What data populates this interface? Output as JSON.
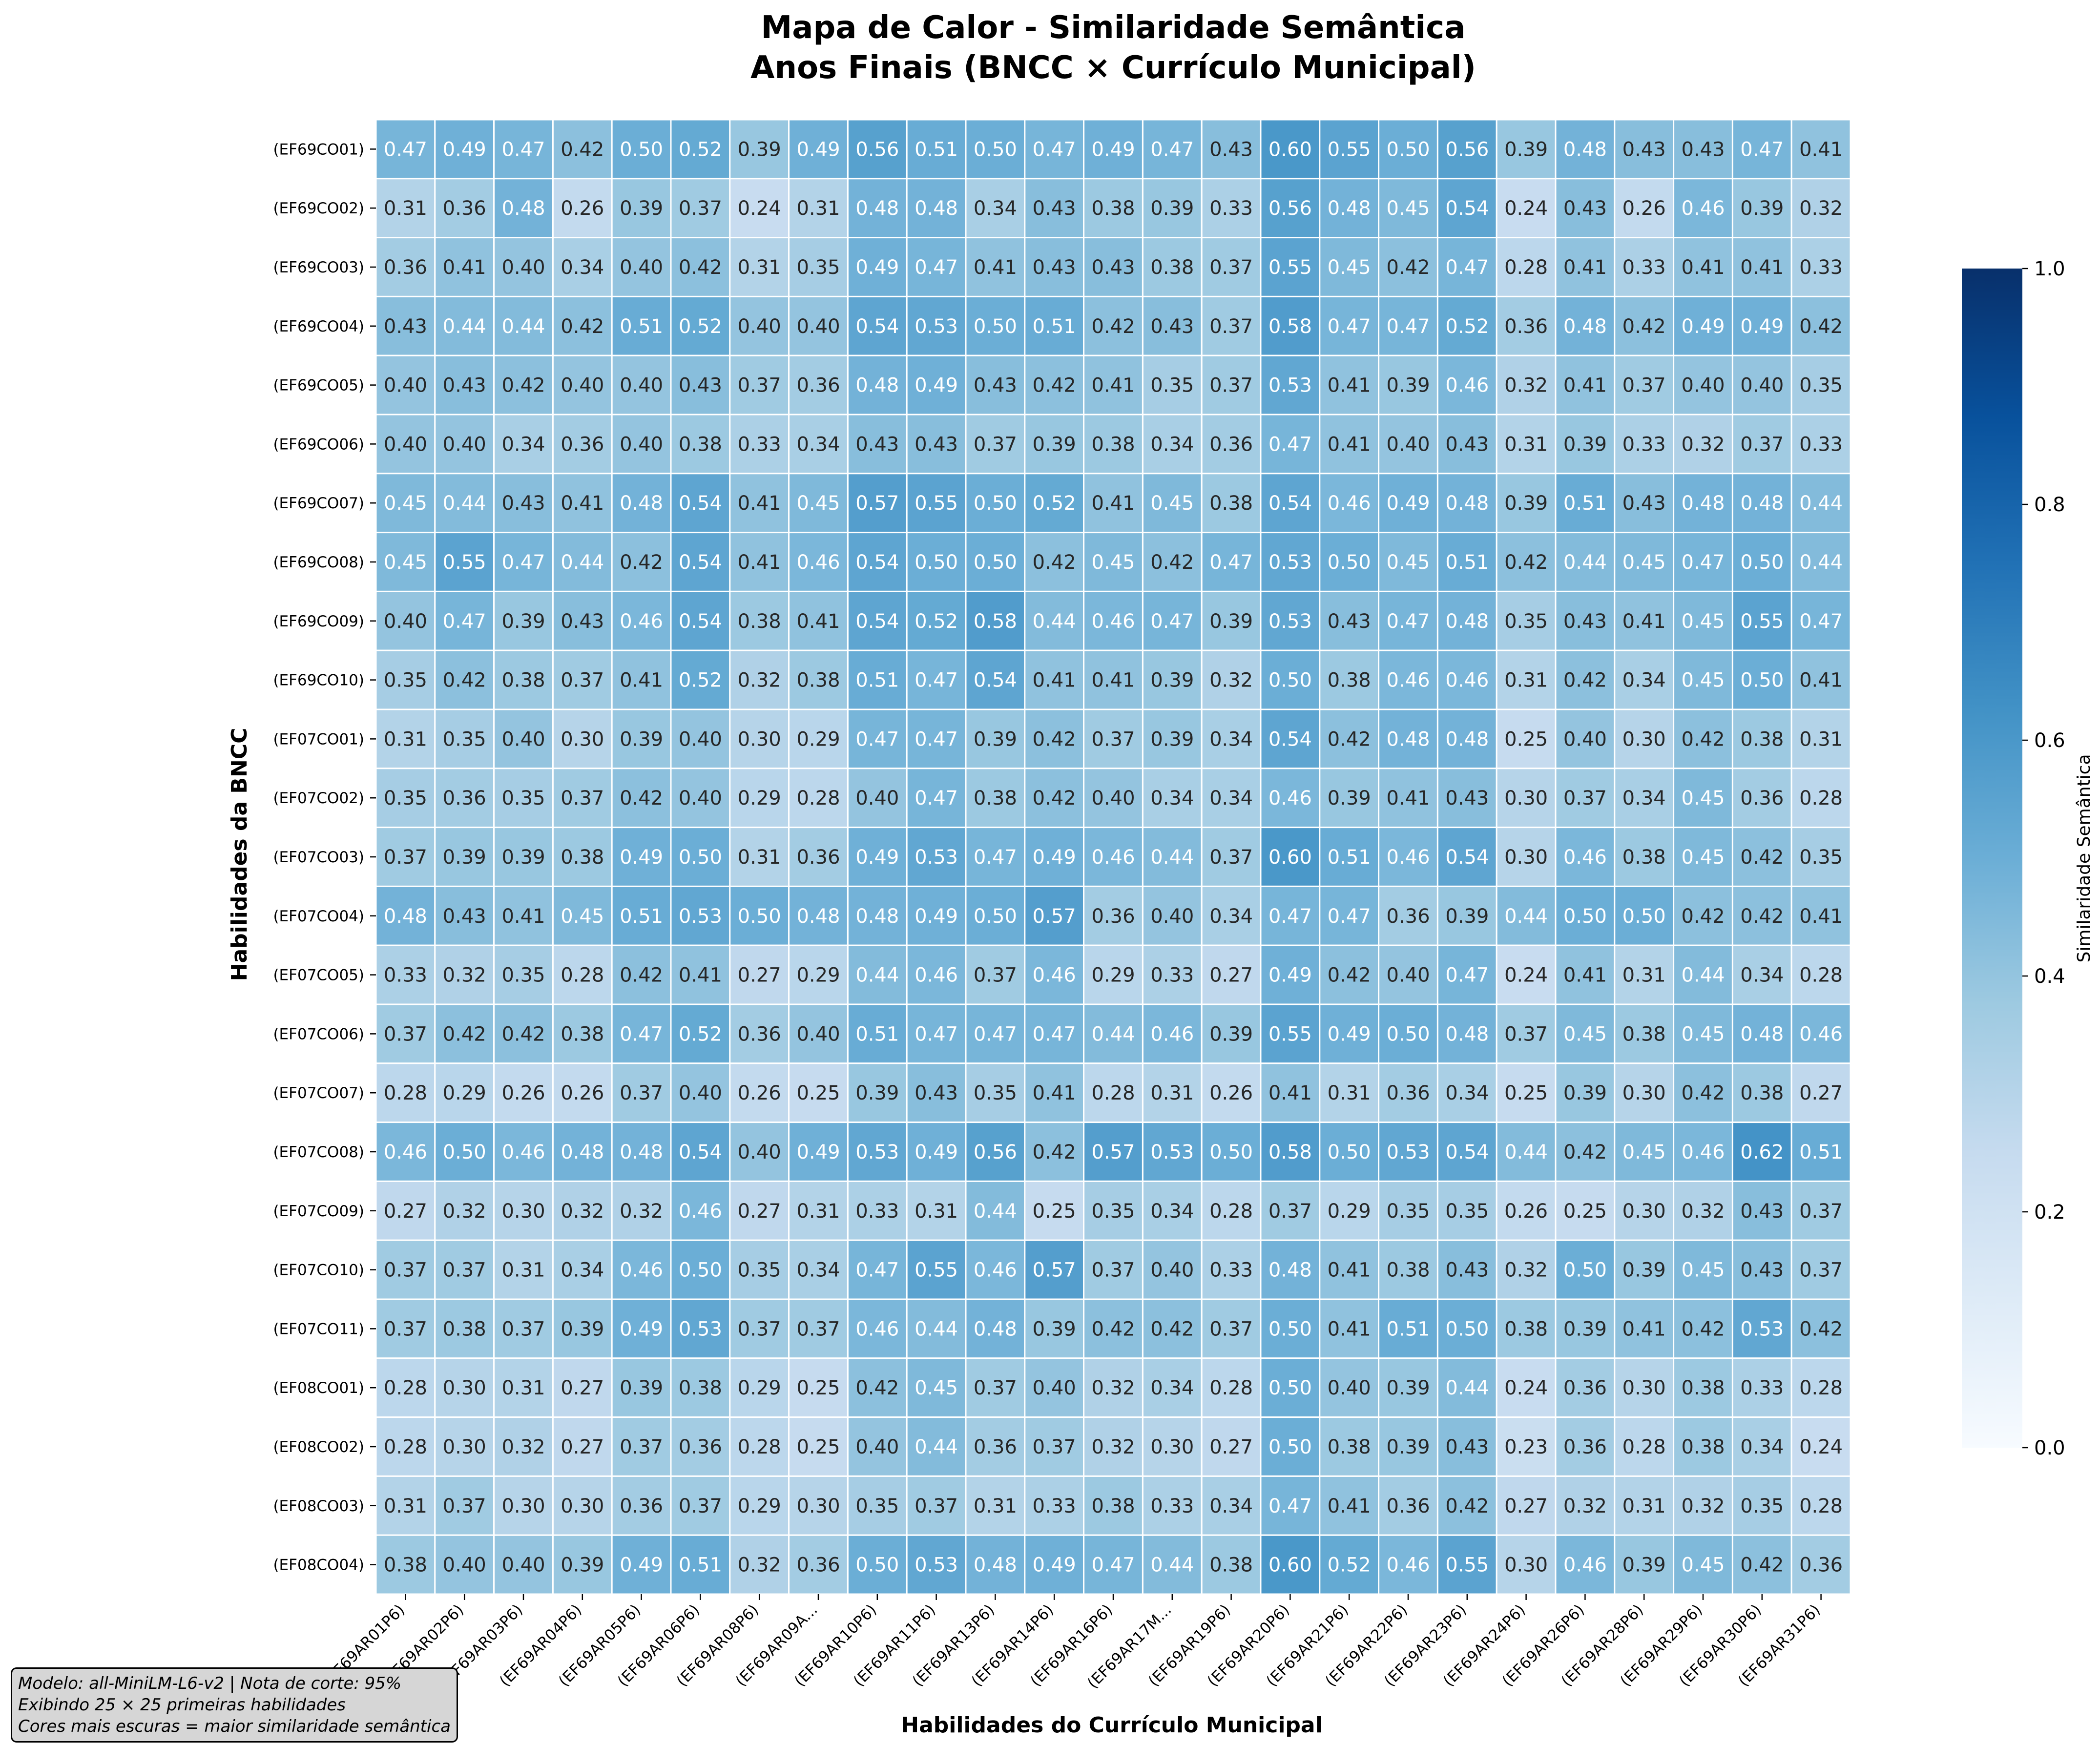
{
  "chart_data": {
    "type": "heatmap",
    "title": "Mapa de Calor - Similaridade Semântica",
    "subtitle": "Anos Finais (BNCC × Currículo Municipal)",
    "xlabel": "Habilidades do Currículo Municipal",
    "ylabel": "Habilidades da BNCC",
    "colorbar_label": "Similaridade Semântica",
    "colorbar_range": [
      0.0,
      1.0
    ],
    "colorbar_ticks": [
      "0.0",
      "0.2",
      "0.4",
      "0.6",
      "0.8",
      "1.0"
    ],
    "colormap": [
      "#f7fbff",
      "#deebf7",
      "#c6dbef",
      "#9ecae1",
      "#6baed6",
      "#4292c6",
      "#2171b5",
      "#08519c",
      "#08306b"
    ],
    "x_labels": [
      "(EF69AR01P6)",
      "(EF69AR02P6)",
      "(EF69AR03P6)",
      "(EF69AR04P6)",
      "(EF69AR05P6)",
      "(EF69AR06P6)",
      "(EF69AR08P6)",
      "(EF69AR09A...",
      "(EF69AR10P6)",
      "(EF69AR11P6)",
      "(EF69AR13P6)",
      "(EF69AR14P6)",
      "(EF69AR16P6)",
      "(EF69AR17M...",
      "(EF69AR19P6)",
      "(EF69AR20P6)",
      "(EF69AR21P6)",
      "(EF69AR22P6)",
      "(EF69AR23P6)",
      "(EF69AR24P6)",
      "(EF69AR26P6)",
      "(EF69AR28P6)",
      "(EF69AR29P6)",
      "(EF69AR30P6)",
      "(EF69AR31P6)"
    ],
    "y_labels": [
      "(EF69CO01)",
      "(EF69CO02)",
      "(EF69CO03)",
      "(EF69CO04)",
      "(EF69CO05)",
      "(EF69CO06)",
      "(EF69CO07)",
      "(EF69CO08)",
      "(EF69CO09)",
      "(EF69CO10)",
      "(EF07CO01)",
      "(EF07CO02)",
      "(EF07CO03)",
      "(EF07CO04)",
      "(EF07CO05)",
      "(EF07CO06)",
      "(EF07CO07)",
      "(EF07CO08)",
      "(EF07CO09)",
      "(EF07CO10)",
      "(EF07CO11)",
      "(EF08CO01)",
      "(EF08CO02)",
      "(EF08CO03)",
      "(EF08CO04)"
    ],
    "values": [
      [
        0.47,
        0.49,
        0.47,
        0.42,
        0.5,
        0.52,
        0.39,
        0.49,
        0.56,
        0.51,
        0.5,
        0.47,
        0.49,
        0.47,
        0.43,
        0.6,
        0.55,
        0.5,
        0.56,
        0.39,
        0.48,
        0.43,
        0.43,
        0.47,
        0.41
      ],
      [
        0.31,
        0.36,
        0.48,
        0.26,
        0.39,
        0.37,
        0.24,
        0.31,
        0.48,
        0.48,
        0.34,
        0.43,
        0.38,
        0.39,
        0.33,
        0.56,
        0.48,
        0.45,
        0.54,
        0.24,
        0.43,
        0.26,
        0.46,
        0.39,
        0.32
      ],
      [
        0.36,
        0.41,
        0.4,
        0.34,
        0.4,
        0.42,
        0.31,
        0.35,
        0.49,
        0.47,
        0.41,
        0.43,
        0.43,
        0.38,
        0.37,
        0.55,
        0.45,
        0.42,
        0.47,
        0.28,
        0.41,
        0.33,
        0.41,
        0.41,
        0.33
      ],
      [
        0.43,
        0.44,
        0.44,
        0.42,
        0.51,
        0.52,
        0.4,
        0.4,
        0.54,
        0.53,
        0.5,
        0.51,
        0.42,
        0.43,
        0.37,
        0.58,
        0.47,
        0.47,
        0.52,
        0.36,
        0.48,
        0.42,
        0.49,
        0.49,
        0.42
      ],
      [
        0.4,
        0.43,
        0.42,
        0.4,
        0.4,
        0.43,
        0.37,
        0.36,
        0.48,
        0.49,
        0.43,
        0.42,
        0.41,
        0.35,
        0.37,
        0.53,
        0.41,
        0.39,
        0.46,
        0.32,
        0.41,
        0.37,
        0.4,
        0.4,
        0.35
      ],
      [
        0.4,
        0.4,
        0.34,
        0.36,
        0.4,
        0.38,
        0.33,
        0.34,
        0.43,
        0.43,
        0.37,
        0.39,
        0.38,
        0.34,
        0.36,
        0.47,
        0.41,
        0.4,
        0.43,
        0.31,
        0.39,
        0.33,
        0.32,
        0.37,
        0.33
      ],
      [
        0.45,
        0.44,
        0.43,
        0.41,
        0.48,
        0.54,
        0.41,
        0.45,
        0.57,
        0.55,
        0.5,
        0.52,
        0.41,
        0.45,
        0.38,
        0.54,
        0.46,
        0.49,
        0.48,
        0.39,
        0.51,
        0.43,
        0.48,
        0.48,
        0.44
      ],
      [
        0.45,
        0.55,
        0.47,
        0.44,
        0.42,
        0.54,
        0.41,
        0.46,
        0.54,
        0.5,
        0.5,
        0.42,
        0.45,
        0.42,
        0.47,
        0.53,
        0.5,
        0.45,
        0.51,
        0.42,
        0.44,
        0.45,
        0.47,
        0.5,
        0.44
      ],
      [
        0.4,
        0.47,
        0.39,
        0.43,
        0.46,
        0.54,
        0.38,
        0.41,
        0.54,
        0.52,
        0.58,
        0.44,
        0.46,
        0.47,
        0.39,
        0.53,
        0.43,
        0.47,
        0.48,
        0.35,
        0.43,
        0.41,
        0.45,
        0.55,
        0.47
      ],
      [
        0.35,
        0.42,
        0.38,
        0.37,
        0.41,
        0.52,
        0.32,
        0.38,
        0.51,
        0.47,
        0.54,
        0.41,
        0.41,
        0.39,
        0.32,
        0.5,
        0.38,
        0.46,
        0.46,
        0.31,
        0.42,
        0.34,
        0.45,
        0.5,
        0.41
      ],
      [
        0.31,
        0.35,
        0.4,
        0.3,
        0.39,
        0.4,
        0.3,
        0.29,
        0.47,
        0.47,
        0.39,
        0.42,
        0.37,
        0.39,
        0.34,
        0.54,
        0.42,
        0.48,
        0.48,
        0.25,
        0.4,
        0.3,
        0.42,
        0.38,
        0.31
      ],
      [
        0.35,
        0.36,
        0.35,
        0.37,
        0.42,
        0.4,
        0.29,
        0.28,
        0.4,
        0.47,
        0.38,
        0.42,
        0.4,
        0.34,
        0.34,
        0.46,
        0.39,
        0.41,
        0.43,
        0.3,
        0.37,
        0.34,
        0.45,
        0.36,
        0.28
      ],
      [
        0.37,
        0.39,
        0.39,
        0.38,
        0.49,
        0.5,
        0.31,
        0.36,
        0.49,
        0.53,
        0.47,
        0.49,
        0.46,
        0.44,
        0.37,
        0.6,
        0.51,
        0.46,
        0.54,
        0.3,
        0.46,
        0.38,
        0.45,
        0.42,
        0.35
      ],
      [
        0.48,
        0.43,
        0.41,
        0.45,
        0.51,
        0.53,
        0.5,
        0.48,
        0.48,
        0.49,
        0.5,
        0.57,
        0.36,
        0.4,
        0.34,
        0.47,
        0.47,
        0.36,
        0.39,
        0.44,
        0.5,
        0.5,
        0.42,
        0.42,
        0.41
      ],
      [
        0.33,
        0.32,
        0.35,
        0.28,
        0.42,
        0.41,
        0.27,
        0.29,
        0.44,
        0.46,
        0.37,
        0.46,
        0.29,
        0.33,
        0.27,
        0.49,
        0.42,
        0.4,
        0.47,
        0.24,
        0.41,
        0.31,
        0.44,
        0.34,
        0.28
      ],
      [
        0.37,
        0.42,
        0.42,
        0.38,
        0.47,
        0.52,
        0.36,
        0.4,
        0.51,
        0.47,
        0.47,
        0.47,
        0.44,
        0.46,
        0.39,
        0.55,
        0.49,
        0.5,
        0.48,
        0.37,
        0.45,
        0.38,
        0.45,
        0.48,
        0.46
      ],
      [
        0.28,
        0.29,
        0.26,
        0.26,
        0.37,
        0.4,
        0.26,
        0.25,
        0.39,
        0.43,
        0.35,
        0.41,
        0.28,
        0.31,
        0.26,
        0.41,
        0.31,
        0.36,
        0.34,
        0.25,
        0.39,
        0.3,
        0.42,
        0.38,
        0.27
      ],
      [
        0.46,
        0.5,
        0.46,
        0.48,
        0.48,
        0.54,
        0.4,
        0.49,
        0.53,
        0.49,
        0.56,
        0.42,
        0.57,
        0.53,
        0.5,
        0.58,
        0.5,
        0.53,
        0.54,
        0.44,
        0.42,
        0.45,
        0.46,
        0.62,
        0.51
      ],
      [
        0.27,
        0.32,
        0.3,
        0.32,
        0.32,
        0.46,
        0.27,
        0.31,
        0.33,
        0.31,
        0.44,
        0.25,
        0.35,
        0.34,
        0.28,
        0.37,
        0.29,
        0.35,
        0.35,
        0.26,
        0.25,
        0.3,
        0.32,
        0.43,
        0.37
      ],
      [
        0.37,
        0.37,
        0.31,
        0.34,
        0.46,
        0.5,
        0.35,
        0.34,
        0.47,
        0.55,
        0.46,
        0.57,
        0.37,
        0.4,
        0.33,
        0.48,
        0.41,
        0.38,
        0.43,
        0.32,
        0.5,
        0.39,
        0.45,
        0.43,
        0.37
      ],
      [
        0.37,
        0.38,
        0.37,
        0.39,
        0.49,
        0.53,
        0.37,
        0.37,
        0.46,
        0.44,
        0.48,
        0.39,
        0.42,
        0.42,
        0.37,
        0.5,
        0.41,
        0.51,
        0.5,
        0.38,
        0.39,
        0.41,
        0.42,
        0.53,
        0.42
      ],
      [
        0.28,
        0.3,
        0.31,
        0.27,
        0.39,
        0.38,
        0.29,
        0.25,
        0.42,
        0.45,
        0.37,
        0.4,
        0.32,
        0.34,
        0.28,
        0.5,
        0.4,
        0.39,
        0.44,
        0.24,
        0.36,
        0.3,
        0.38,
        0.33,
        0.28
      ],
      [
        0.28,
        0.3,
        0.32,
        0.27,
        0.37,
        0.36,
        0.28,
        0.25,
        0.4,
        0.44,
        0.36,
        0.37,
        0.32,
        0.3,
        0.27,
        0.5,
        0.38,
        0.39,
        0.43,
        0.23,
        0.36,
        0.28,
        0.38,
        0.34,
        0.24
      ],
      [
        0.31,
        0.37,
        0.3,
        0.3,
        0.36,
        0.37,
        0.29,
        0.3,
        0.35,
        0.37,
        0.31,
        0.33,
        0.38,
        0.33,
        0.34,
        0.47,
        0.41,
        0.36,
        0.42,
        0.27,
        0.32,
        0.31,
        0.32,
        0.35,
        0.28
      ],
      [
        0.38,
        0.4,
        0.4,
        0.39,
        0.49,
        0.51,
        0.32,
        0.36,
        0.5,
        0.53,
        0.48,
        0.49,
        0.47,
        0.44,
        0.38,
        0.6,
        0.52,
        0.46,
        0.55,
        0.3,
        0.46,
        0.39,
        0.45,
        0.42,
        0.36
      ]
    ],
    "grid": false
  },
  "note": {
    "lines": [
      "Modelo: all-MiniLM-L6-v2 | Nota de corte: 95%",
      "Exibindo 25 × 25 primeiras habilidades",
      "Cores mais escuras = maior similaridade semântica"
    ]
  }
}
